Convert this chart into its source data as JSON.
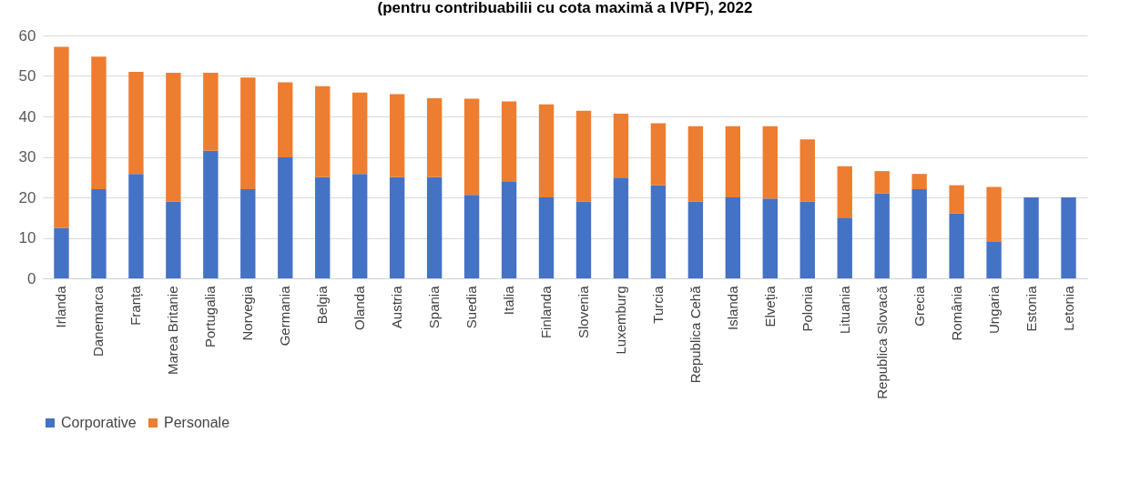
{
  "chart_data": {
    "type": "bar",
    "title": "(pentru contribuabilii cu cota maximă a IVPF), 2022",
    "stacked": true,
    "categories": [
      "Irlanda",
      "Danemarca",
      "Franța",
      "Marea Britanie",
      "Portugalia",
      "Norvegia",
      "Germania",
      "Belgia",
      "Olanda",
      "Austria",
      "Spania",
      "Suedia",
      "Italia",
      "Finlanda",
      "Slovenia",
      "Luxemburg",
      "Turcia",
      "Republica Cehă",
      "Islanda",
      "Elveția",
      "Polonia",
      "Lituania",
      "Republica Slovacă",
      "Grecia",
      "România",
      "Ungaria",
      "Estonia",
      "Letonia"
    ],
    "series": [
      {
        "name": "Corporative",
        "color": "#4472c4",
        "values": [
          12.5,
          22,
          25.8,
          19,
          31.5,
          22,
          29.9,
          25,
          25.8,
          25,
          25,
          20.6,
          24,
          20,
          19,
          24.9,
          23,
          19,
          20,
          19.7,
          19,
          15,
          21,
          22,
          16,
          9,
          20,
          20
        ]
      },
      {
        "name": "Personale",
        "color": "#ed7d31",
        "values": [
          44.7,
          32.8,
          25.2,
          31.8,
          19.3,
          27.6,
          18.5,
          22.5,
          20.1,
          20.5,
          19.5,
          23.8,
          19.7,
          23,
          22.4,
          15.8,
          15.3,
          18.6,
          17.6,
          17.9,
          15.3,
          12.7,
          5.5,
          3.8,
          7,
          13.6,
          null,
          null
        ]
      }
    ],
    "ylim": [
      0,
      60
    ],
    "yticks": [
      0,
      10,
      20,
      30,
      40,
      50,
      60
    ],
    "grid": "y",
    "legend": "bottom"
  }
}
